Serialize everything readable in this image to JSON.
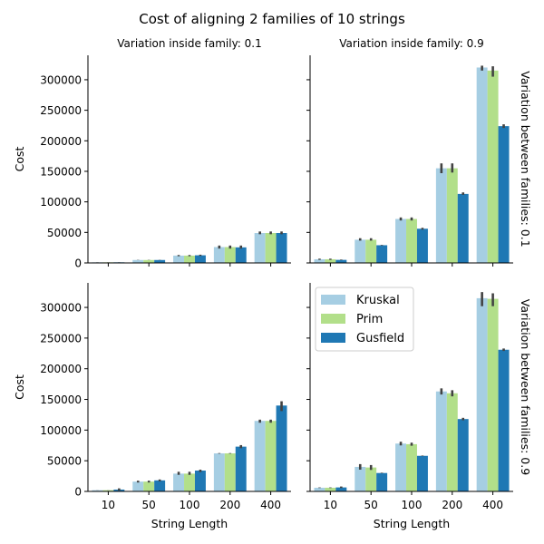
{
  "figure": {
    "title": "Cost of aligning 2 families of 10 strings"
  },
  "legend": {
    "placement": "top-left of bottom-right panel",
    "entries": [
      "Kruskal",
      "Prim",
      "Gusfield"
    ]
  },
  "colors": {
    "Kruskal": "#a6cee3",
    "Prim": "#b2df8a",
    "Gusfield": "#1f78b4",
    "errorbar": "#424242",
    "axis": "#000000"
  },
  "chart_data": [
    {
      "type": "bar",
      "col_title": "Variation inside family: 0.1",
      "row_title": "",
      "xlabel": "",
      "ylabel": "Cost",
      "ylim": [
        0,
        340000
      ],
      "yticks": [
        0,
        50000,
        100000,
        150000,
        200000,
        250000,
        300000
      ],
      "categories": [
        "10",
        "50",
        "100",
        "200",
        "400"
      ],
      "grid": false,
      "series": [
        {
          "name": "Kruskal",
          "values": [
            1000,
            4800,
            12000,
            26000,
            49000
          ],
          "err": [
            [
              900,
              1100
            ],
            [
              4600,
              5000
            ],
            [
              11000,
              13000
            ],
            [
              23500,
              28500
            ],
            [
              47000,
              51500
            ]
          ]
        },
        {
          "name": "Prim",
          "values": [
            1000,
            4800,
            12000,
            26000,
            49000
          ],
          "err": [
            [
              900,
              1100
            ],
            [
              4600,
              5000
            ],
            [
              11000,
              13000
            ],
            [
              23500,
              28500
            ],
            [
              47000,
              51500
            ]
          ]
        },
        {
          "name": "Gusfield",
          "values": [
            1000,
            4800,
            12500,
            25500,
            49000
          ],
          "err": [
            [
              900,
              1100
            ],
            [
              4600,
              5000
            ],
            [
              11500,
              13500
            ],
            [
              23500,
              28500
            ],
            [
              47000,
              51500
            ]
          ]
        }
      ]
    },
    {
      "type": "bar",
      "col_title": "Variation inside family: 0.9",
      "row_title": "Variation between families: 0.1",
      "xlabel": "",
      "ylabel": "",
      "ylim": [
        0,
        340000
      ],
      "yticks": [
        0,
        50000,
        100000,
        150000,
        200000,
        250000,
        300000
      ],
      "categories": [
        "10",
        "50",
        "100",
        "200",
        "400"
      ],
      "grid": false,
      "series": [
        {
          "name": "Kruskal",
          "values": [
            6000,
            38000,
            72000,
            155000,
            320000
          ],
          "err": [
            [
              5000,
              7000
            ],
            [
              36500,
              40500
            ],
            [
              69500,
              74500
            ],
            [
              147000,
              163000
            ],
            [
              315000,
              323000
            ]
          ]
        },
        {
          "name": "Prim",
          "values": [
            6000,
            38000,
            72000,
            155000,
            315000
          ],
          "err": [
            [
              5000,
              7000
            ],
            [
              36500,
              40500
            ],
            [
              69500,
              74500
            ],
            [
              148000,
              163000
            ],
            [
              305000,
              322000
            ]
          ]
        },
        {
          "name": "Gusfield",
          "values": [
            5000,
            29000,
            56000,
            113000,
            224000
          ],
          "err": [
            [
              4500,
              5500
            ],
            [
              28500,
              29500
            ],
            [
              54500,
              57500
            ],
            [
              111500,
              115500
            ],
            [
              221000,
              227000
            ]
          ]
        }
      ]
    },
    {
      "type": "bar",
      "col_title": "",
      "row_title": "",
      "xlabel": "String Length",
      "ylabel": "Cost",
      "ylim": [
        0,
        340000
      ],
      "yticks": [
        0,
        50000,
        100000,
        150000,
        200000,
        250000,
        300000
      ],
      "categories": [
        "10",
        "50",
        "100",
        "200",
        "400"
      ],
      "grid": false,
      "series": [
        {
          "name": "Kruskal",
          "values": [
            2000,
            16000,
            29000,
            62000,
            115000
          ],
          "err": [
            [
              1900,
              2100
            ],
            [
              14500,
              17500
            ],
            [
              27000,
              32000
            ],
            [
              61500,
              62500
            ],
            [
              112000,
              117000
            ]
          ]
        },
        {
          "name": "Prim",
          "values": [
            2000,
            16000,
            29000,
            62000,
            115000
          ],
          "err": [
            [
              1900,
              2100
            ],
            [
              14500,
              17500
            ],
            [
              27000,
              32000
            ],
            [
              61500,
              62500
            ],
            [
              112000,
              117000
            ]
          ]
        },
        {
          "name": "Gusfield",
          "values": [
            3000,
            18000,
            34000,
            73000,
            140000
          ],
          "err": [
            [
              1500,
              5000
            ],
            [
              16500,
              19500
            ],
            [
              31500,
              35500
            ],
            [
              70500,
              75500
            ],
            [
              131000,
              147000
            ]
          ]
        }
      ]
    },
    {
      "type": "bar",
      "col_title": "",
      "row_title": "Variation between families: 0.9",
      "xlabel": "String Length",
      "ylabel": "",
      "ylim": [
        0,
        340000
      ],
      "yticks": [
        0,
        50000,
        100000,
        150000,
        200000,
        250000,
        300000
      ],
      "categories": [
        "10",
        "50",
        "100",
        "200",
        "400"
      ],
      "grid": false,
      "series": [
        {
          "name": "Kruskal",
          "values": [
            6000,
            40000,
            78000,
            163000,
            315000
          ],
          "err": [
            [
              5500,
              6500
            ],
            [
              35500,
              44500
            ],
            [
              75000,
              81000
            ],
            [
              158000,
              168000
            ],
            [
              302000,
              325000
            ]
          ]
        },
        {
          "name": "Prim",
          "values": [
            6000,
            39000,
            77000,
            160000,
            314000
          ],
          "err": [
            [
              5500,
              6500
            ],
            [
              35000,
              43000
            ],
            [
              74500,
              79500
            ],
            [
              155000,
              165000
            ],
            [
              302000,
              323000
            ]
          ]
        },
        {
          "name": "Gusfield",
          "values": [
            6500,
            30000,
            58000,
            118000,
            231000
          ],
          "err": [
            [
              5500,
              8000
            ],
            [
              29500,
              30500
            ],
            [
              57500,
              58500
            ],
            [
              116000,
              120000
            ],
            [
              229000,
              233000
            ]
          ]
        }
      ]
    }
  ]
}
